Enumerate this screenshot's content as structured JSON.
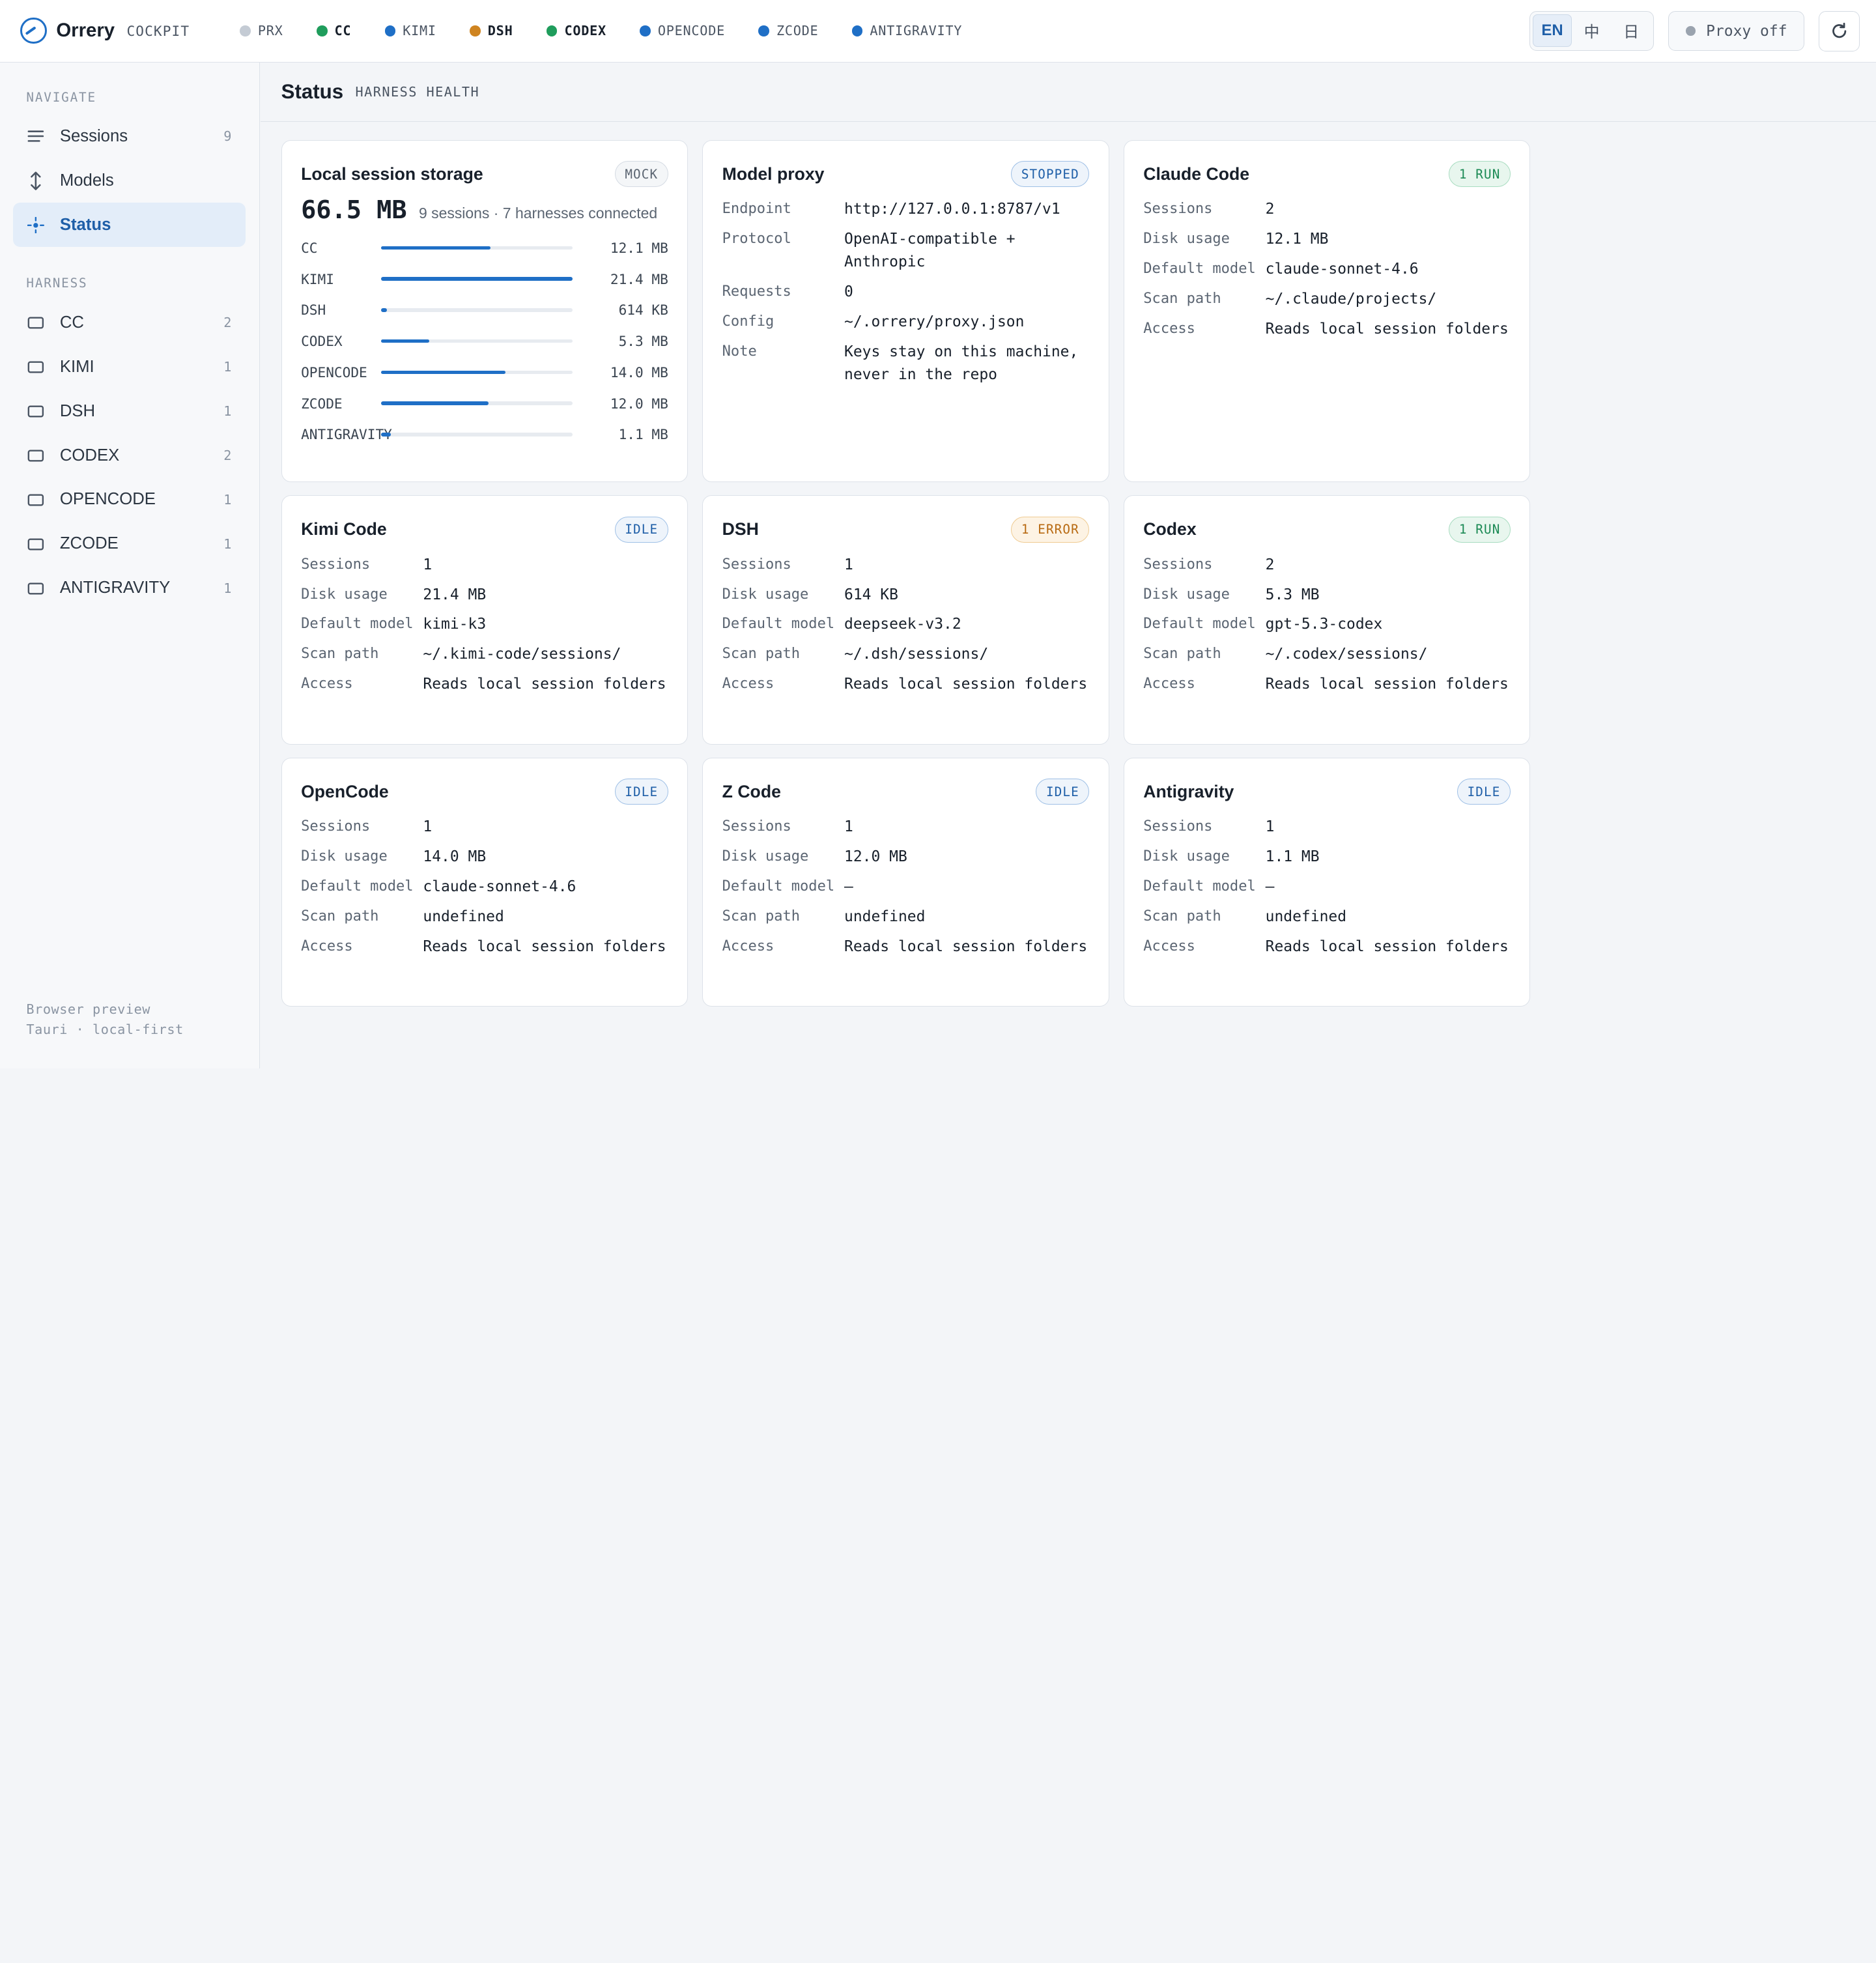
{
  "app": {
    "name": "Orrery",
    "subtitle": "COCKPIT"
  },
  "harness_chips": [
    {
      "label": "PRX",
      "color": "#c4cbd4"
    },
    {
      "label": "CC",
      "color": "#1f9d5c"
    },
    {
      "label": "KIMI",
      "color": "#1f6fc6"
    },
    {
      "label": "DSH",
      "color": "#cf8420"
    },
    {
      "label": "CODEX",
      "color": "#1f9d5c"
    },
    {
      "label": "OPENCODE",
      "color": "#1f6fc6"
    },
    {
      "label": "ZCODE",
      "color": "#1f6fc6"
    },
    {
      "label": "ANTIGRAVITY",
      "color": "#1f6fc6"
    }
  ],
  "lang": {
    "en": "EN",
    "zh": "中",
    "ja": "日"
  },
  "proxy_toggle": "Proxy off",
  "sidebar": {
    "navigate_label": "NAVIGATE",
    "nav": [
      {
        "label": "Sessions",
        "count": "9",
        "icon": "list-icon"
      },
      {
        "label": "Models",
        "count": "",
        "icon": "arrows-icon"
      },
      {
        "label": "Status",
        "count": "",
        "icon": "status-icon",
        "active": true
      }
    ],
    "harness_label": "HARNESS",
    "harnesses": [
      {
        "label": "CC",
        "count": "2"
      },
      {
        "label": "KIMI",
        "count": "1"
      },
      {
        "label": "DSH",
        "count": "1"
      },
      {
        "label": "CODEX",
        "count": "2"
      },
      {
        "label": "OPENCODE",
        "count": "1"
      },
      {
        "label": "ZCODE",
        "count": "1"
      },
      {
        "label": "ANTIGRAVITY",
        "count": "1"
      }
    ],
    "footer_line1": "Browser preview",
    "footer_line2": "Tauri · local-first"
  },
  "page": {
    "title": "Status",
    "subtitle": "HARNESS HEALTH"
  },
  "storage": {
    "title": "Local session storage",
    "badge": "MOCK",
    "total": "66.5 MB",
    "meta": "9 sessions · 7 harnesses connected",
    "rows": [
      {
        "label": "CC",
        "value": "12.1 MB",
        "fraction": 0.57
      },
      {
        "label": "KIMI",
        "value": "21.4 MB",
        "fraction": 1.0
      },
      {
        "label": "DSH",
        "value": "614 KB",
        "fraction": 0.03
      },
      {
        "label": "CODEX",
        "value": "5.3 MB",
        "fraction": 0.25
      },
      {
        "label": "OPENCODE",
        "value": "14.0 MB",
        "fraction": 0.65
      },
      {
        "label": "ZCODE",
        "value": "12.0 MB",
        "fraction": 0.56
      },
      {
        "label": "ANTIGRAVITY",
        "value": "1.1 MB",
        "fraction": 0.05
      }
    ]
  },
  "proxy": {
    "title": "Model proxy",
    "badge": "STOPPED",
    "rows": [
      {
        "key": "Endpoint",
        "value": "http://127.0.0.1:8787/v1"
      },
      {
        "key": "Protocol",
        "value": "OpenAI-compatible + Anthropic"
      },
      {
        "key": "Requests",
        "value": "0"
      },
      {
        "key": "Config",
        "value": "~/.orrery/proxy.json"
      },
      {
        "key": "Note",
        "value": "Keys stay on this machine, never in the repo"
      }
    ]
  },
  "harness_cards": [
    {
      "title": "Claude Code",
      "badge": "1 RUN",
      "badge_type": "run",
      "rows": [
        {
          "key": "Sessions",
          "value": "2"
        },
        {
          "key": "Disk usage",
          "value": "12.1 MB"
        },
        {
          "key": "Default model",
          "value": "claude-sonnet-4.6"
        },
        {
          "key": "Scan path",
          "value": "~/.claude/projects/"
        },
        {
          "key": "Access",
          "value": "Reads local session folders"
        }
      ]
    },
    {
      "title": "Kimi Code",
      "badge": "IDLE",
      "badge_type": "idle",
      "rows": [
        {
          "key": "Sessions",
          "value": "1"
        },
        {
          "key": "Disk usage",
          "value": "21.4 MB"
        },
        {
          "key": "Default model",
          "value": "kimi-k3"
        },
        {
          "key": "Scan path",
          "value": "~/.kimi-code/sessions/"
        },
        {
          "key": "Access",
          "value": "Reads local session folders"
        }
      ]
    },
    {
      "title": "DSH",
      "badge": "1 ERROR",
      "badge_type": "error",
      "rows": [
        {
          "key": "Sessions",
          "value": "1"
        },
        {
          "key": "Disk usage",
          "value": "614 KB"
        },
        {
          "key": "Default model",
          "value": "deepseek-v3.2"
        },
        {
          "key": "Scan path",
          "value": "~/.dsh/sessions/"
        },
        {
          "key": "Access",
          "value": "Reads local session folders"
        }
      ]
    },
    {
      "title": "Codex",
      "badge": "1 RUN",
      "badge_type": "run",
      "rows": [
        {
          "key": "Sessions",
          "value": "2"
        },
        {
          "key": "Disk usage",
          "value": "5.3 MB"
        },
        {
          "key": "Default model",
          "value": "gpt-5.3-codex"
        },
        {
          "key": "Scan path",
          "value": "~/.codex/sessions/"
        },
        {
          "key": "Access",
          "value": "Reads local session folders"
        }
      ]
    },
    {
      "title": "OpenCode",
      "badge": "IDLE",
      "badge_type": "idle",
      "rows": [
        {
          "key": "Sessions",
          "value": "1"
        },
        {
          "key": "Disk usage",
          "value": "14.0 MB"
        },
        {
          "key": "Default model",
          "value": "claude-sonnet-4.6"
        },
        {
          "key": "Scan path",
          "value": "undefined"
        },
        {
          "key": "Access",
          "value": "Reads local session folders"
        }
      ]
    },
    {
      "title": "Z Code",
      "badge": "IDLE",
      "badge_type": "idle",
      "rows": [
        {
          "key": "Sessions",
          "value": "1"
        },
        {
          "key": "Disk usage",
          "value": "12.0 MB"
        },
        {
          "key": "Default model",
          "value": "—"
        },
        {
          "key": "Scan path",
          "value": "undefined"
        },
        {
          "key": "Access",
          "value": "Reads local session folders"
        }
      ]
    },
    {
      "title": "Antigravity",
      "badge": "IDLE",
      "badge_type": "idle",
      "rows": [
        {
          "key": "Sessions",
          "value": "1"
        },
        {
          "key": "Disk usage",
          "value": "1.1 MB"
        },
        {
          "key": "Default model",
          "value": "—"
        },
        {
          "key": "Scan path",
          "value": "undefined"
        },
        {
          "key": "Access",
          "value": "Reads local session folders"
        }
      ]
    }
  ]
}
